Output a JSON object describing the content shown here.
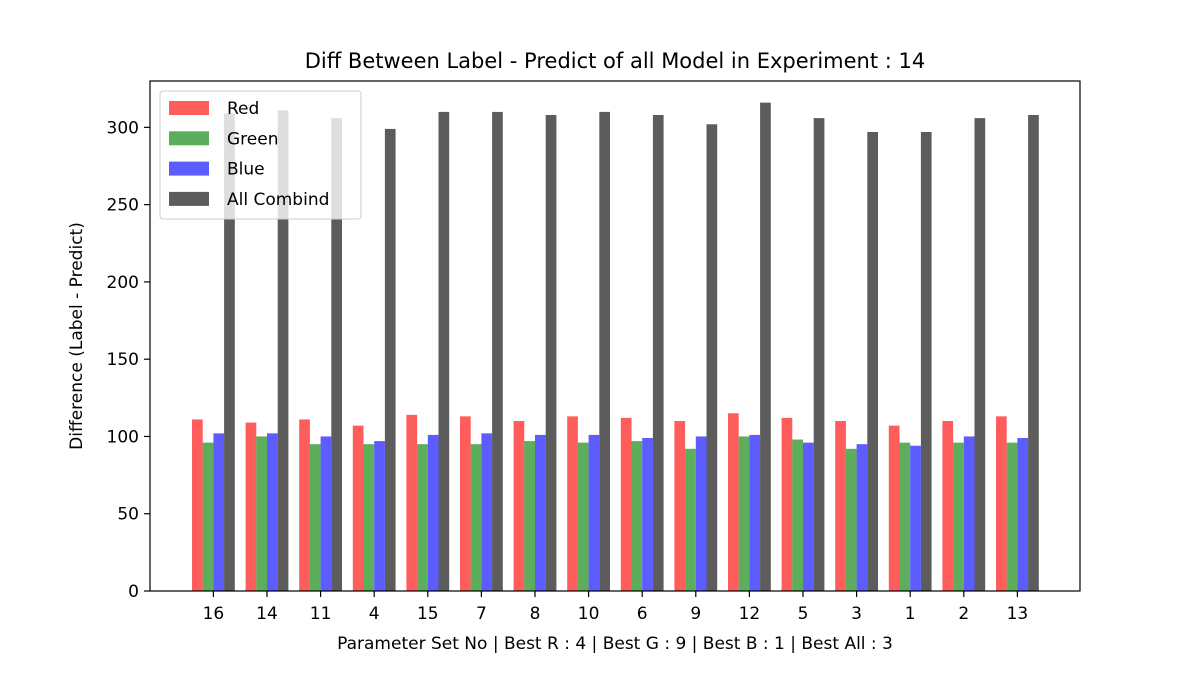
{
  "chart_data": {
    "type": "bar",
    "title": "Diff Between Label - Predict of all Model in Experiment : 14",
    "xlabel": "Parameter Set No | Best R : 4 | Best G : 9 | Best B : 1 | Best All : 3",
    "ylabel": "Difference (Label - Predict)",
    "ylim": [
      0,
      330
    ],
    "yticks": [
      0,
      50,
      100,
      150,
      200,
      250,
      300
    ],
    "categories": [
      "16",
      "14",
      "11",
      "4",
      "15",
      "7",
      "8",
      "10",
      "6",
      "9",
      "12",
      "5",
      "3",
      "1",
      "2",
      "13"
    ],
    "series": [
      {
        "name": "Red",
        "color": "#ff3333",
        "values": [
          111,
          109,
          111,
          107,
          114,
          113,
          110,
          113,
          112,
          110,
          115,
          112,
          110,
          107,
          110,
          113
        ]
      },
      {
        "name": "Green",
        "color": "#339933",
        "values": [
          96,
          100,
          95,
          95,
          95,
          95,
          97,
          96,
          97,
          92,
          100,
          98,
          92,
          96,
          96,
          96
        ]
      },
      {
        "name": "Blue",
        "color": "#3333ff",
        "values": [
          102,
          102,
          100,
          97,
          101,
          102,
          101,
          101,
          99,
          100,
          101,
          96,
          95,
          94,
          100,
          99
        ]
      },
      {
        "name": "All Combind",
        "color": "#333333",
        "values": [
          309,
          311,
          306,
          299,
          310,
          310,
          308,
          310,
          308,
          302,
          316,
          306,
          297,
          297,
          306,
          308
        ]
      }
    ],
    "legend": "top-left",
    "grid": false
  }
}
